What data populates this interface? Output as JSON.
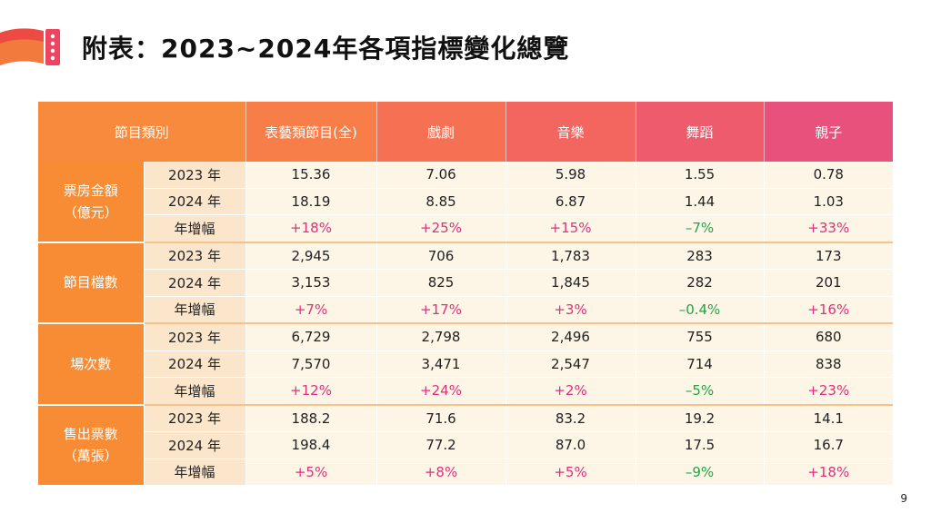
{
  "title": "附表：2023~2024年各項指標變化總覽",
  "page_number": "9",
  "colors": {
    "header_start": "#f78a3d",
    "header_end": "#e9517d",
    "category_bg": "#f78c35",
    "increase": "#e0307c",
    "decrease": "#23a348"
  },
  "table": {
    "headers": [
      "節目類別",
      "表藝類節目(全)",
      "戲劇",
      "音樂",
      "舞蹈",
      "親子"
    ],
    "groups": [
      {
        "label": "票房金額\n（億元）",
        "rows": [
          {
            "year": "2023 年",
            "values": [
              "15.36",
              "7.06",
              "5.98",
              "1.55",
              "0.78"
            ]
          },
          {
            "year": "2024 年",
            "values": [
              "18.19",
              "8.85",
              "6.87",
              "1.44",
              "1.03"
            ]
          },
          {
            "year": "年增幅",
            "values": [
              "+18%",
              "+25%",
              "+15%",
              "–7%",
              "+33%"
            ]
          }
        ]
      },
      {
        "label": "節目檔數",
        "rows": [
          {
            "year": "2023 年",
            "values": [
              "2,945",
              "706",
              "1,783",
              "283",
              "173"
            ]
          },
          {
            "year": "2024 年",
            "values": [
              "3,153",
              "825",
              "1,845",
              "282",
              "201"
            ]
          },
          {
            "year": "年增幅",
            "values": [
              "+7%",
              "+17%",
              "+3%",
              "–0.4%",
              "+16%"
            ]
          }
        ]
      },
      {
        "label": "場次數",
        "rows": [
          {
            "year": "2023 年",
            "values": [
              "6,729",
              "2,798",
              "2,496",
              "755",
              "680"
            ]
          },
          {
            "year": "2024 年",
            "values": [
              "7,570",
              "3,471",
              "2,547",
              "714",
              "838"
            ]
          },
          {
            "year": "年增幅",
            "values": [
              "+12%",
              "+24%",
              "+2%",
              "–5%",
              "+23%"
            ]
          }
        ]
      },
      {
        "label": "售出票數\n（萬張）",
        "rows": [
          {
            "year": "2023 年",
            "values": [
              "188.2",
              "71.6",
              "83.2",
              "19.2",
              "14.1"
            ]
          },
          {
            "year": "2024 年",
            "values": [
              "198.4",
              "77.2",
              "87.0",
              "17.5",
              "16.7"
            ]
          },
          {
            "year": "年增幅",
            "values": [
              "+5%",
              "+8%",
              "+5%",
              "–9%",
              "+18%"
            ]
          }
        ]
      }
    ]
  }
}
